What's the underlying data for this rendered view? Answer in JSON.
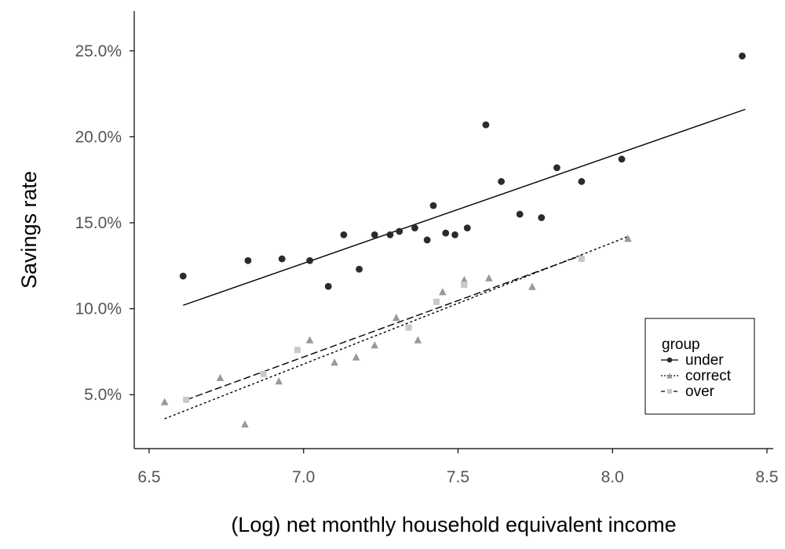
{
  "chart_data": {
    "type": "scatter",
    "xlabel": "(Log) net monthly household equivalent income",
    "ylabel": "Savings rate",
    "xlim": [
      6.5,
      8.5
    ],
    "ylim": [
      0.02,
      0.27
    ],
    "x_ticks": [
      6.5,
      7.0,
      7.5,
      8.0,
      8.5
    ],
    "x_tick_labels": [
      "6.5",
      "7.0",
      "7.5",
      "8.0",
      "8.5"
    ],
    "y_ticks": [
      0.05,
      0.1,
      0.15,
      0.2,
      0.25
    ],
    "y_tick_labels": [
      "5.0%",
      "10.0%",
      "15.0%",
      "20.0%",
      "25.0%"
    ],
    "grid": false,
    "legend": {
      "title": "group",
      "placement": "bottom-right",
      "entries": [
        "under",
        "correct",
        "over"
      ]
    },
    "series": [
      {
        "name": "under",
        "marker": "circle",
        "color": "#2b2b2b",
        "line_style": "solid",
        "fit": {
          "x": [
            6.61,
            8.43
          ],
          "y": [
            0.102,
            0.216
          ]
        },
        "points": [
          [
            6.61,
            0.119
          ],
          [
            6.82,
            0.128
          ],
          [
            6.93,
            0.129
          ],
          [
            7.02,
            0.128
          ],
          [
            7.08,
            0.113
          ],
          [
            7.13,
            0.143
          ],
          [
            7.18,
            0.123
          ],
          [
            7.23,
            0.143
          ],
          [
            7.28,
            0.143
          ],
          [
            7.31,
            0.145
          ],
          [
            7.36,
            0.147
          ],
          [
            7.4,
            0.14
          ],
          [
            7.42,
            0.16
          ],
          [
            7.46,
            0.144
          ],
          [
            7.49,
            0.143
          ],
          [
            7.53,
            0.147
          ],
          [
            7.59,
            0.207
          ],
          [
            7.64,
            0.174
          ],
          [
            7.7,
            0.155
          ],
          [
            7.77,
            0.153
          ],
          [
            7.82,
            0.182
          ],
          [
            7.9,
            0.174
          ],
          [
            8.03,
            0.187
          ],
          [
            8.42,
            0.247
          ]
        ]
      },
      {
        "name": "correct",
        "marker": "triangle",
        "color": "#999999",
        "line_style": "dotted",
        "fit": {
          "x": [
            6.55,
            8.05
          ],
          "y": [
            0.036,
            0.142
          ]
        },
        "points": [
          [
            6.55,
            0.046
          ],
          [
            6.73,
            0.06
          ],
          [
            6.81,
            0.033
          ],
          [
            6.92,
            0.058
          ],
          [
            7.02,
            0.082
          ],
          [
            7.1,
            0.069
          ],
          [
            7.17,
            0.072
          ],
          [
            7.23,
            0.079
          ],
          [
            7.3,
            0.095
          ],
          [
            7.37,
            0.082
          ],
          [
            7.45,
            0.11
          ],
          [
            7.52,
            0.117
          ],
          [
            7.6,
            0.118
          ],
          [
            7.74,
            0.113
          ],
          [
            8.05,
            0.141
          ]
        ]
      },
      {
        "name": "over",
        "marker": "square",
        "color": "#c8c8c8",
        "line_style": "dashed",
        "fit": {
          "x": [
            6.62,
            7.9
          ],
          "y": [
            0.047,
            0.131
          ]
        },
        "points": [
          [
            6.62,
            0.047
          ],
          [
            6.87,
            0.062
          ],
          [
            6.98,
            0.076
          ],
          [
            7.34,
            0.089
          ],
          [
            7.43,
            0.104
          ],
          [
            7.52,
            0.114
          ],
          [
            7.9,
            0.129
          ]
        ]
      }
    ]
  }
}
